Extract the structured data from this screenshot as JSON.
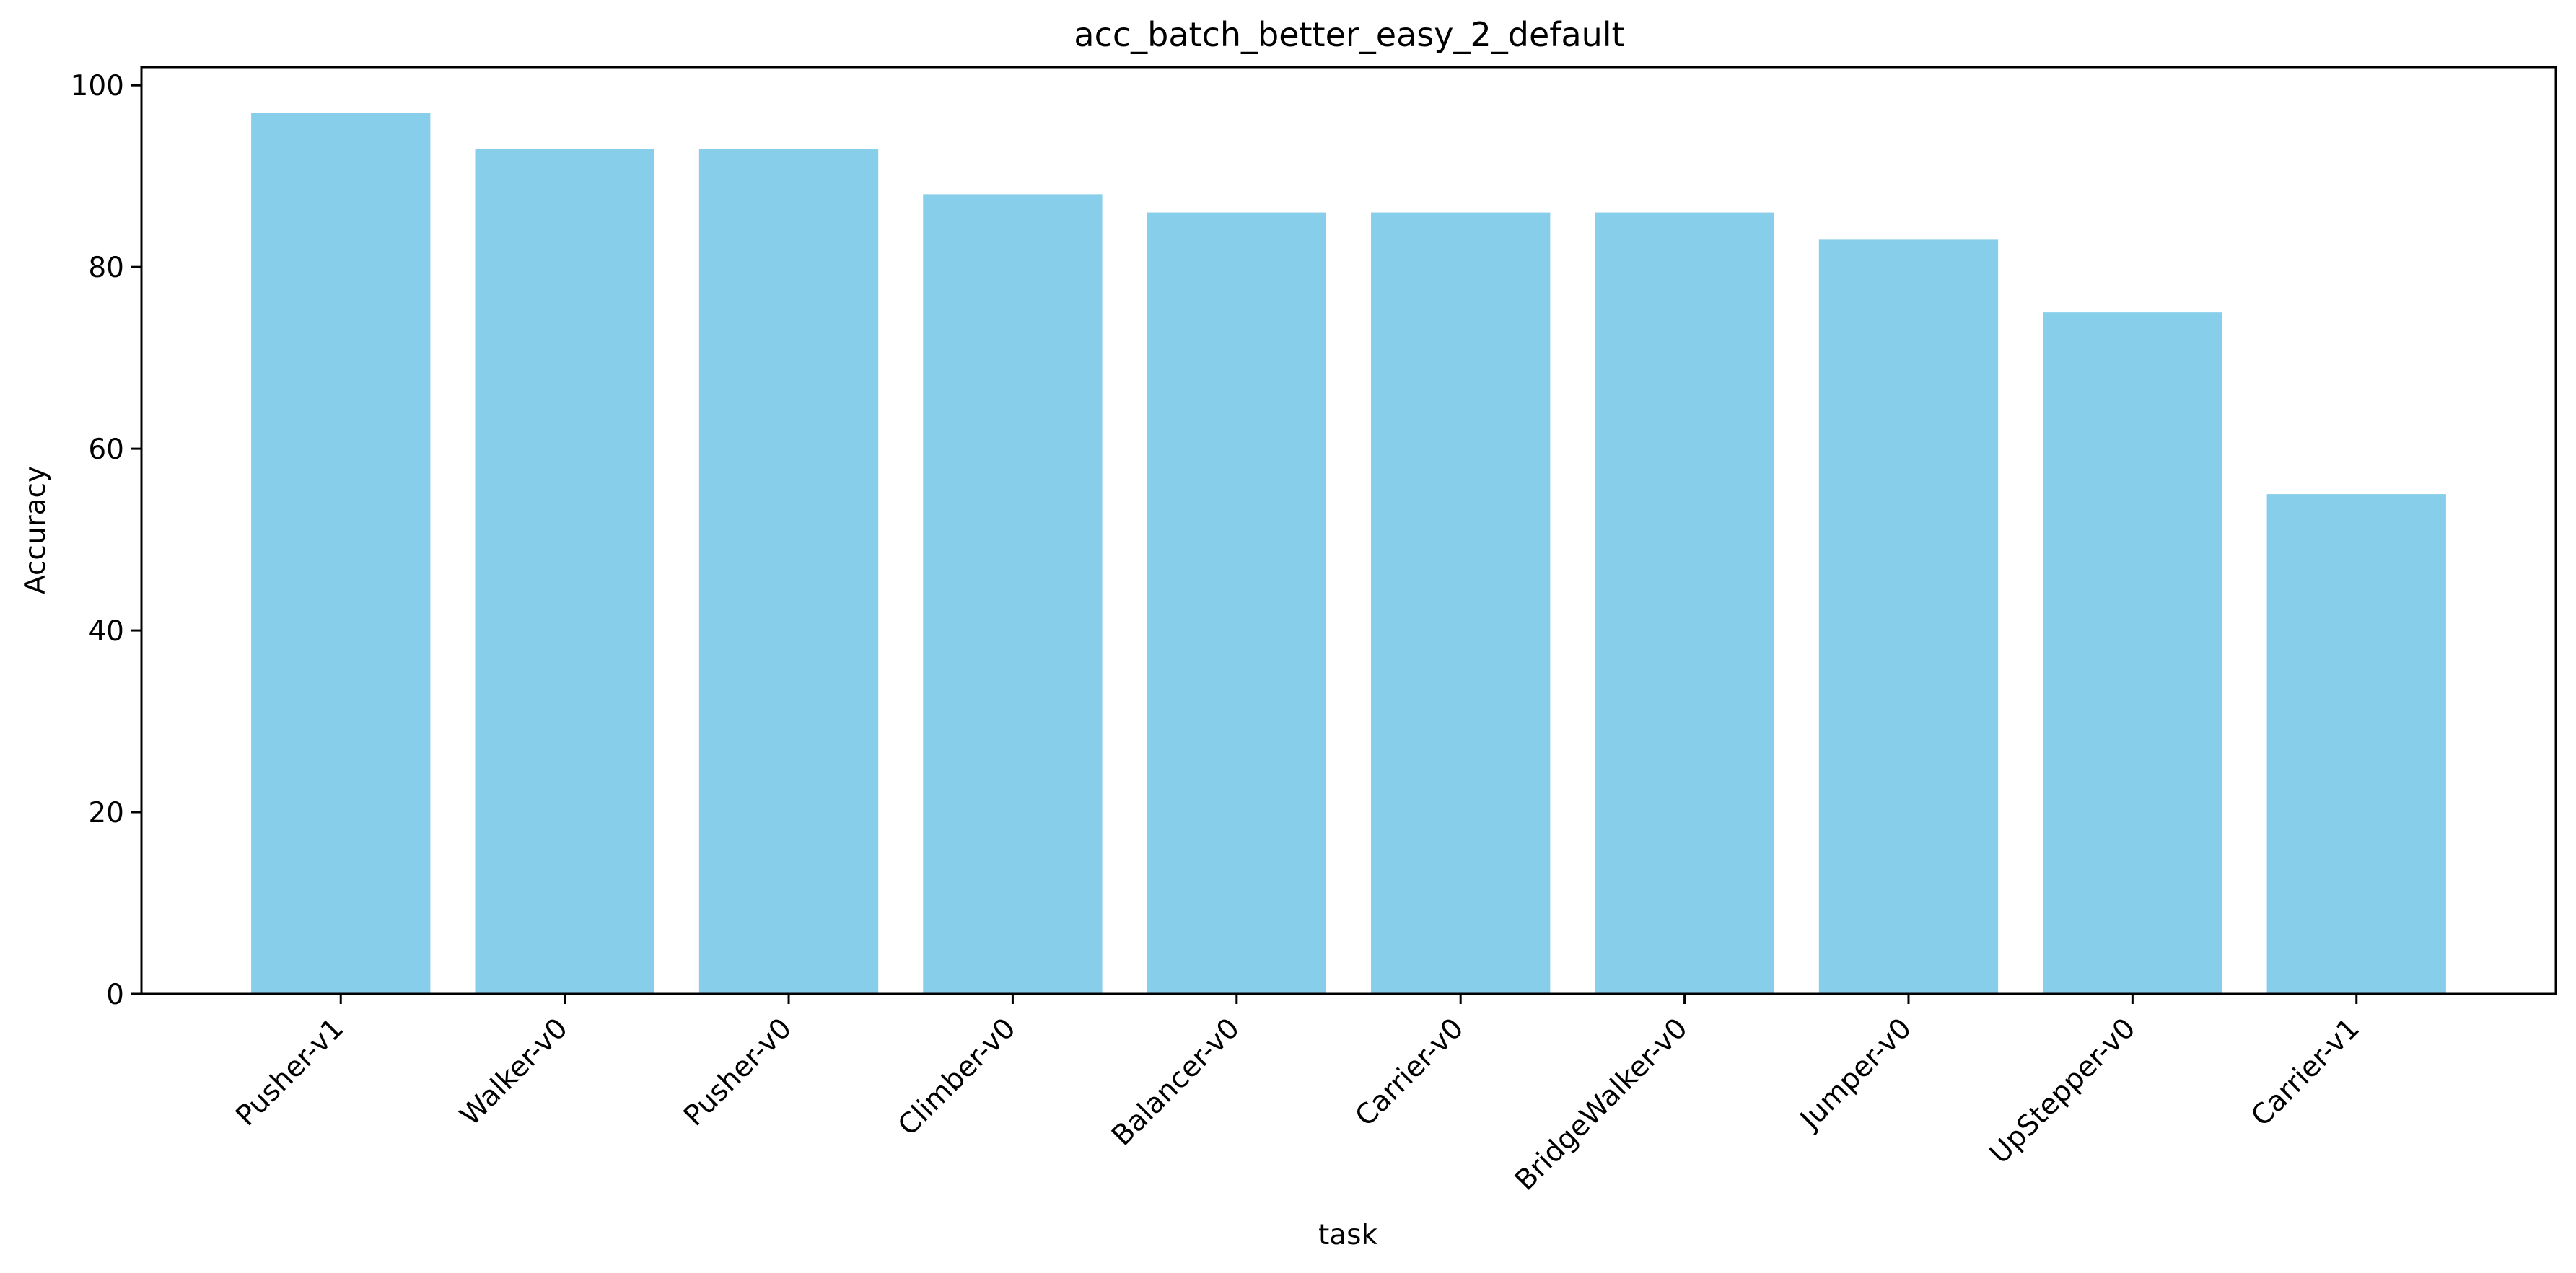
{
  "chart_data": {
    "type": "bar",
    "title": "acc_batch_better_easy_2_default",
    "xlabel": "task",
    "ylabel": "Accuracy",
    "categories": [
      "Pusher-v1",
      "Walker-v0",
      "Pusher-v0",
      "Climber-v0",
      "Balancer-v0",
      "Carrier-v0",
      "BridgeWalker-v0",
      "Jumper-v0",
      "UpStepper-v0",
      "Carrier-v1"
    ],
    "values": [
      97,
      93,
      93,
      88,
      86,
      86,
      86,
      83,
      75,
      55
    ],
    "ylim": [
      0,
      102
    ],
    "yticks": [
      0,
      20,
      40,
      60,
      80,
      100
    ],
    "bar_color": "#87CEEB",
    "grid": false,
    "legend": "none",
    "xtick_rotation": 45
  }
}
